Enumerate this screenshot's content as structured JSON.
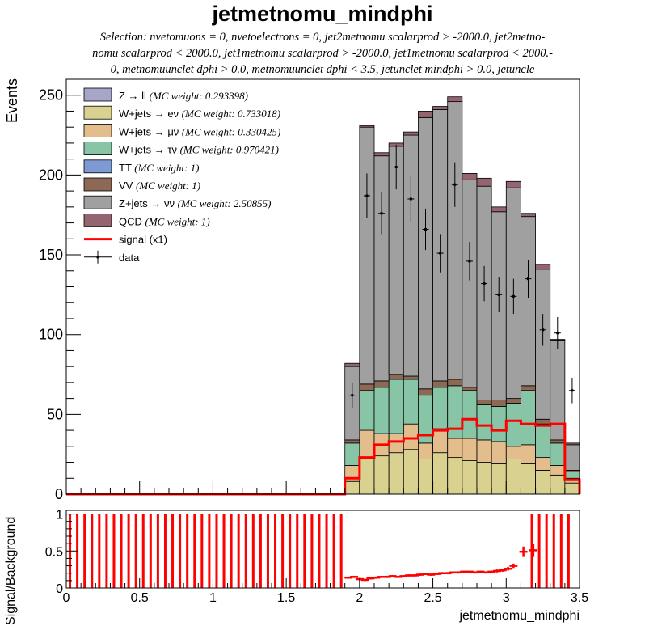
{
  "title": "jetmetnomu_mindphi",
  "selection_lines": [
    "Selection: nvetomuons = 0, nvetoelectrons = 0, jet2metnomu scalarprod > -2000.0, jet2metno-",
    "nomu scalarprod < 2000.0, jet1metnomu scalarprod > -2000.0, jet1metnomu scalarprod < 2000.-",
    "0, metnomuunclet dphi > 0.0, metnomuunclet dphi < 3.5, jetunclet mindphi > 0.0, jetuncle"
  ],
  "chart_data": [
    {
      "type": "bar",
      "stacked": true,
      "title": "jetmetnomu_mindphi",
      "ylabel": "Events",
      "xlim": [
        0,
        3.5
      ],
      "ylim": [
        0,
        260
      ],
      "bin_width": 0.1,
      "x_edges_start": 1.9,
      "yticks": [
        "0",
        "50",
        "100",
        "150",
        "200",
        "250"
      ],
      "legend_position": "top-left",
      "series": [
        {
          "name": "Z → ll",
          "weight_label": "(MC weight: 0.293398)",
          "color": "#a7a5c8",
          "values": [
            0,
            0,
            0,
            0,
            0,
            0,
            0,
            0,
            0,
            0,
            0,
            0,
            0,
            0,
            0,
            0
          ]
        },
        {
          "name": "W+jets → eν",
          "weight_label": "(MC weight: 0.733018)",
          "color": "#d9d18f",
          "values": [
            8,
            22,
            24,
            26,
            28,
            22,
            26,
            23,
            21,
            20,
            19,
            22,
            19,
            15,
            12,
            7
          ]
        },
        {
          "name": "W+jets → μν",
          "weight_label": "(MC weight: 0.330425)",
          "color": "#e4bd8d",
          "values": [
            10,
            18,
            14,
            12,
            16,
            10,
            15,
            12,
            14,
            14,
            14,
            8,
            12,
            8,
            6,
            3
          ]
        },
        {
          "name": "W+jets → τν",
          "weight_label": "(MC weight: 0.970421)",
          "color": "#88c4a6",
          "values": [
            14,
            25,
            29,
            34,
            28,
            30,
            26,
            33,
            30,
            22,
            22,
            27,
            34,
            21,
            14,
            4
          ]
        },
        {
          "name": "TT",
          "weight_label": "(MC weight: 1)",
          "color": "#7d9ad3",
          "values": [
            0,
            0,
            0,
            0,
            0,
            0,
            0,
            0,
            0,
            0,
            0,
            0,
            0,
            0,
            0,
            0
          ]
        },
        {
          "name": "VV",
          "weight_label": "(MC weight: 1)",
          "color": "#8c6855",
          "values": [
            2,
            4,
            4,
            3,
            2,
            4,
            4,
            4,
            2,
            3,
            4,
            3,
            3,
            3,
            2,
            1
          ]
        },
        {
          "name": "Z+jets → νν",
          "weight_label": "(MC weight: 2.50855)",
          "color": "#a0a0a0",
          "values": [
            46,
            161,
            141,
            143,
            151,
            170,
            170,
            174,
            130,
            134,
            118,
            132,
            106,
            94,
            62,
            16
          ]
        },
        {
          "name": "QCD",
          "weight_label": "(MC weight: 1)",
          "color": "#946570",
          "values": [
            2,
            1,
            2,
            2,
            2,
            4,
            2,
            3,
            4,
            5,
            3,
            4,
            2,
            3,
            1,
            1
          ]
        }
      ],
      "signal": {
        "name": "signal (x1)",
        "color": "#ff0000",
        "values": [
          10,
          23,
          31,
          33,
          35,
          37,
          40,
          41,
          47,
          43,
          40,
          46,
          44,
          43,
          44,
          9
        ]
      },
      "data": {
        "name": "data",
        "values": [
          62,
          187,
          176,
          205,
          185,
          166,
          151,
          194,
          146,
          132,
          125,
          124,
          135,
          103,
          101,
          65
        ],
        "errors": [
          8,
          14,
          13,
          14,
          14,
          13,
          12,
          14,
          12,
          11,
          11,
          11,
          12,
          10,
          10,
          8
        ]
      }
    },
    {
      "type": "scatter",
      "ylabel": "Signal/Background",
      "xlabel": "jetmetnomu_mindphi",
      "xlim": [
        0,
        3.5
      ],
      "ylim": [
        0,
        1.05
      ],
      "xticks": [
        "0",
        "0.5",
        "1",
        "1.5",
        "2",
        "2.5",
        "3",
        "3.5"
      ],
      "yticks": [
        "0",
        "0.5",
        "1"
      ],
      "reference_line": 1,
      "empty_bins_below": 1.9,
      "empty_bins_above": 3.1,
      "bin_width": 0.05,
      "ratio_x_start": 1.925,
      "ratio": [
        0.14,
        0.15,
        0.12,
        0.11,
        0.13,
        0.14,
        0.15,
        0.15,
        0.16,
        0.15,
        0.16,
        0.17,
        0.17,
        0.18,
        0.19,
        0.18,
        0.19,
        0.2,
        0.2,
        0.21,
        0.21,
        0.22,
        0.22,
        0.21,
        0.22,
        0.21,
        0.22,
        0.23,
        0.24,
        0.26,
        0.3,
        0.49,
        0.51
      ],
      "ratio_err": [
        0.015,
        0.015,
        0.015,
        0.015,
        0.015,
        0.015,
        0.015,
        0.015,
        0.015,
        0.015,
        0.015,
        0.015,
        0.015,
        0.015,
        0.015,
        0.015,
        0.015,
        0.015,
        0.015,
        0.015,
        0.015,
        0.015,
        0.015,
        0.015,
        0.015,
        0.015,
        0.015,
        0.02,
        0.02,
        0.025,
        0.03,
        0.07,
        0.09
      ]
    }
  ]
}
